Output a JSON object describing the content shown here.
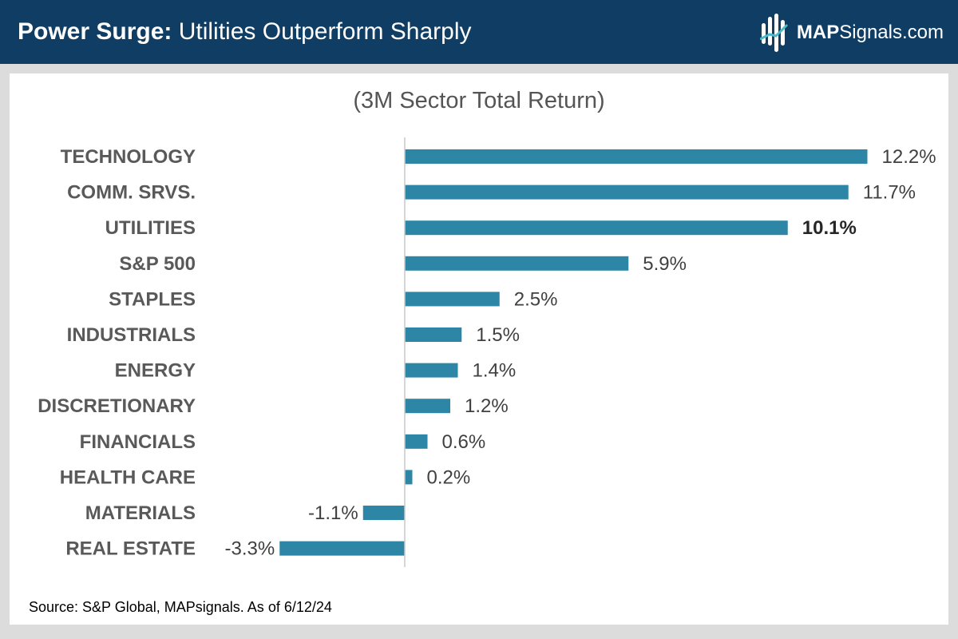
{
  "header": {
    "title_bold": "Power Surge:",
    "title_rest": "Utilities Outperform Sharply",
    "brand_bold": "MAP",
    "brand_rest": "Signals.com",
    "icon": "mapsignals-logo-icon"
  },
  "colors": {
    "header_bg": "#0f3d63",
    "bar": "#2e86a6"
  },
  "chart_data": {
    "type": "bar",
    "orientation": "horizontal",
    "title": "(3M Sector Total Return)",
    "categories": [
      "TECHNOLOGY",
      "COMM. SRVS.",
      "UTILITIES",
      "S&P 500",
      "STAPLES",
      "INDUSTRIALS",
      "ENERGY",
      "DISCRETIONARY",
      "FINANCIALS",
      "HEALTH CARE",
      "MATERIALS",
      "REAL ESTATE"
    ],
    "values": [
      12.2,
      11.7,
      10.1,
      5.9,
      2.5,
      1.5,
      1.4,
      1.2,
      0.6,
      0.2,
      -1.1,
      -3.3
    ],
    "value_labels": [
      "12.2%",
      "11.7%",
      "10.1%",
      "5.9%",
      "2.5%",
      "1.5%",
      "1.4%",
      "1.2%",
      "0.6%",
      "0.2%",
      "-1.1%",
      "-3.3%"
    ],
    "highlight": "UTILITIES",
    "xlim": [
      -3.3,
      12.2
    ],
    "grid": false,
    "legend": "none"
  },
  "footer": {
    "source": "Source: S&P Global, MAPsignals. As of 6/12/24"
  }
}
